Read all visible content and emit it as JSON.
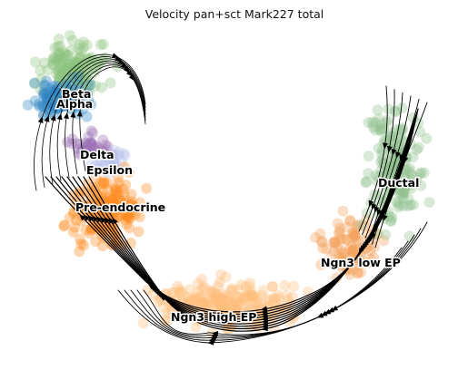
{
  "chart_data": {
    "type": "scatter",
    "title": "Velocity pan+sct Mark227 total",
    "xlabel": "",
    "ylabel": "",
    "axes_visible": false,
    "grid": false,
    "legend": "none",
    "overlay": "velocity streamlines with arrowheads",
    "clusters": [
      {
        "label": "Beta",
        "color": "#8bc47e"
      },
      {
        "label": "Alpha",
        "color": "#2e84c4"
      },
      {
        "label": "Delta",
        "color": "#9c6fb4"
      },
      {
        "label": "Epsilon",
        "color": "#b7c3ea"
      },
      {
        "label": "Pre-endocrine",
        "color": "#ff8a1c"
      },
      {
        "label": "Ngn3 high EP",
        "color": "#ffbd7a"
      },
      {
        "label": "Ngn3 low EP",
        "color": "#f4a05a"
      },
      {
        "label": "Ductal",
        "color": "#8fbf8b"
      }
    ]
  }
}
